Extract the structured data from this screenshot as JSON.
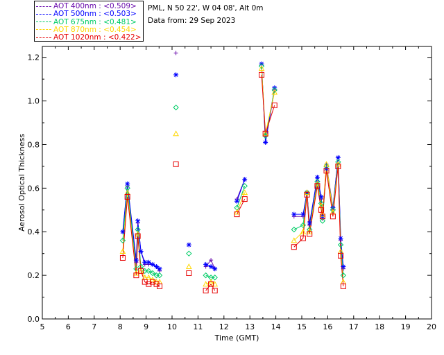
{
  "legend": [
    {
      "label": "AOT  400nm : <0.509>",
      "color": "#6a0dad"
    },
    {
      "label": "AOT  500nm : <0.503>",
      "color": "#0000ff"
    },
    {
      "label": "AOT  675nm : <0.481>",
      "color": "#00cc66"
    },
    {
      "label": "AOT  870nm : <0.454>",
      "color": "#ffd700"
    },
    {
      "label": "AOT 1020nm : <0.422>",
      "color": "#e60000"
    }
  ],
  "info": {
    "location": "PML, N 50 22', W 04 08', Alt 0m",
    "date_line": "Data from: 29 Sep 2023"
  },
  "chart_data": {
    "type": "scatter",
    "xlabel": "Time (GMT)",
    "ylabel": "Aerosol Optical Thickness",
    "xlim": [
      5,
      20
    ],
    "ylim": [
      0,
      1.25
    ],
    "xticks": [
      "5",
      "6",
      "7",
      "8",
      "9",
      "10",
      "11",
      "12",
      "13",
      "14",
      "15",
      "16",
      "17",
      "18",
      "19",
      "20"
    ],
    "yticks": [
      "0.0",
      "0.2",
      "0.4",
      "0.6",
      "0.8",
      "1.0",
      "1.2"
    ],
    "x": [
      8.1,
      8.28,
      8.62,
      8.68,
      8.8,
      8.95,
      9.1,
      9.25,
      9.4,
      9.52,
      10.15,
      10.65,
      11.3,
      11.5,
      11.65,
      12.5,
      12.8,
      13.45,
      13.6,
      13.95,
      14.7,
      15.05,
      15.2,
      15.3,
      15.6,
      15.75,
      15.8,
      15.95,
      16.2,
      16.4,
      16.5,
      16.6
    ],
    "series": [
      {
        "name": "AOT  400nm",
        "values": [
          0.4,
          0.61,
          0.26,
          0.44,
          0.31,
          0.25,
          0.25,
          0.25,
          0.24,
          0.22,
          1.22,
          0.34,
          0.24,
          0.27,
          0.23,
          0.55,
          0.64,
          1.17,
          0.81,
          1.05,
          0.47,
          0.47,
          0.58,
          0.43,
          0.65,
          0.55,
          0.46,
          0.71,
          0.51,
          0.74,
          0.36,
          0.23
        ]
      },
      {
        "name": "AOT  500nm",
        "values": [
          0.4,
          0.62,
          0.27,
          0.45,
          0.31,
          0.26,
          0.26,
          0.25,
          0.24,
          0.23,
          1.12,
          0.34,
          0.25,
          0.24,
          0.23,
          0.54,
          0.64,
          1.17,
          0.81,
          1.06,
          0.48,
          0.48,
          0.58,
          0.44,
          0.65,
          0.56,
          0.47,
          0.69,
          0.51,
          0.74,
          0.37,
          0.24
        ]
      },
      {
        "name": "AOT  675nm",
        "values": [
          0.36,
          0.6,
          0.23,
          0.41,
          0.24,
          0.22,
          0.22,
          0.21,
          0.2,
          0.2,
          0.97,
          0.3,
          0.2,
          0.19,
          0.19,
          0.51,
          0.61,
          1.16,
          0.84,
          1.05,
          0.41,
          0.43,
          0.58,
          0.41,
          0.63,
          0.53,
          0.45,
          0.7,
          0.5,
          0.72,
          0.34,
          0.2
        ]
      },
      {
        "name": "AOT  870nm",
        "values": [
          0.31,
          0.58,
          0.21,
          0.39,
          0.22,
          0.19,
          0.19,
          0.18,
          0.17,
          0.17,
          0.85,
          0.24,
          0.16,
          0.17,
          0.16,
          0.49,
          0.58,
          1.15,
          0.85,
          1.04,
          0.36,
          0.4,
          0.58,
          0.4,
          0.62,
          0.52,
          0.48,
          0.71,
          0.49,
          0.71,
          0.31,
          0.17
        ]
      },
      {
        "name": "AOT 1020nm",
        "values": [
          0.28,
          0.56,
          0.2,
          0.38,
          0.22,
          0.17,
          0.16,
          0.17,
          0.16,
          0.15,
          0.71,
          0.21,
          0.13,
          0.16,
          0.13,
          0.48,
          0.55,
          1.12,
          0.85,
          0.98,
          0.33,
          0.37,
          0.57,
          0.39,
          0.61,
          0.5,
          0.47,
          0.68,
          0.47,
          0.7,
          0.29,
          0.15
        ]
      }
    ]
  }
}
